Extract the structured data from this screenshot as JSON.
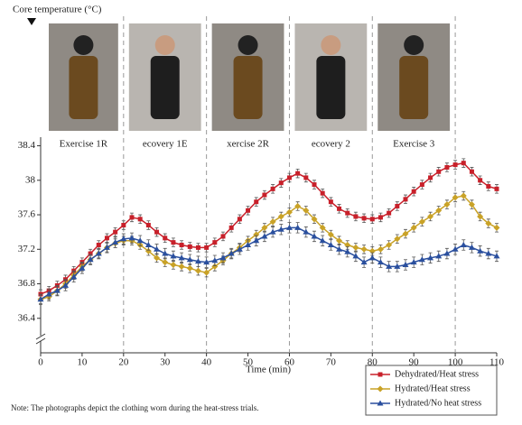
{
  "chart_data": {
    "type": "line",
    "y_label": "Core temperature (°C)",
    "x_label": "Time (min)",
    "note": "Note: The photographs depict the clothing worn during the heat-stress trials.",
    "phases": [
      "Exercise 1R",
      "ecovery 1E",
      "xercise 2R",
      "ecovery 2",
      "Exercise 3"
    ],
    "phase_bounds": [
      20,
      40,
      60,
      80,
      100
    ],
    "xlim": [
      0,
      110
    ],
    "xticks": [
      0,
      10,
      20,
      30,
      40,
      50,
      60,
      70,
      80,
      90,
      100,
      110
    ],
    "ylim": [
      36.0,
      38.5
    ],
    "yticks": [
      36.4,
      36.8,
      37.2,
      37.6,
      38.0,
      38.4
    ],
    "x": [
      0,
      2,
      4,
      6,
      8,
      10,
      12,
      14,
      16,
      18,
      20,
      22,
      24,
      26,
      28,
      30,
      32,
      34,
      36,
      38,
      40,
      42,
      44,
      46,
      48,
      50,
      52,
      54,
      56,
      58,
      60,
      62,
      64,
      66,
      68,
      70,
      72,
      74,
      76,
      78,
      80,
      82,
      84,
      86,
      88,
      90,
      92,
      94,
      96,
      98,
      100,
      102,
      104,
      106,
      108,
      110
    ],
    "series": [
      {
        "name": "Dehydrated/Heat stress",
        "color": "#c8202a",
        "marker": "square",
        "error": 0.05,
        "values": [
          36.68,
          36.72,
          36.78,
          36.85,
          36.95,
          37.05,
          37.15,
          37.25,
          37.33,
          37.4,
          37.48,
          37.57,
          37.55,
          37.48,
          37.4,
          37.33,
          37.28,
          37.25,
          37.23,
          37.22,
          37.22,
          37.28,
          37.35,
          37.45,
          37.55,
          37.65,
          37.75,
          37.83,
          37.9,
          37.97,
          38.03,
          38.08,
          38.03,
          37.95,
          37.85,
          37.75,
          37.67,
          37.62,
          37.58,
          37.56,
          37.55,
          37.57,
          37.62,
          37.7,
          37.78,
          37.87,
          37.95,
          38.03,
          38.1,
          38.15,
          38.18,
          38.2,
          38.1,
          38.0,
          37.93,
          37.9
        ]
      },
      {
        "name": "Hydrated/Heat stress",
        "color": "#c9a227",
        "marker": "diamond",
        "error": 0.05,
        "values": [
          36.62,
          36.65,
          36.72,
          36.8,
          36.9,
          37.0,
          37.08,
          37.15,
          37.22,
          37.27,
          37.3,
          37.3,
          37.25,
          37.18,
          37.1,
          37.05,
          37.02,
          37.0,
          36.98,
          36.95,
          36.93,
          37.0,
          37.07,
          37.15,
          37.22,
          37.3,
          37.37,
          37.45,
          37.52,
          37.58,
          37.63,
          37.7,
          37.65,
          37.55,
          37.45,
          37.37,
          37.3,
          37.25,
          37.22,
          37.2,
          37.18,
          37.2,
          37.25,
          37.32,
          37.38,
          37.45,
          37.52,
          37.58,
          37.65,
          37.72,
          37.8,
          37.82,
          37.72,
          37.58,
          37.5,
          37.45
        ]
      },
      {
        "name": "Hydrated/No heat stress",
        "color": "#2a4f9e",
        "marker": "triangle",
        "error": 0.06,
        "values": [
          36.62,
          36.68,
          36.72,
          36.78,
          36.88,
          36.98,
          37.08,
          37.15,
          37.22,
          37.28,
          37.32,
          37.33,
          37.3,
          37.25,
          37.2,
          37.15,
          37.12,
          37.1,
          37.08,
          37.06,
          37.05,
          37.07,
          37.1,
          37.15,
          37.2,
          37.25,
          37.3,
          37.35,
          37.4,
          37.43,
          37.45,
          37.45,
          37.4,
          37.35,
          37.3,
          37.25,
          37.2,
          37.17,
          37.12,
          37.05,
          37.1,
          37.05,
          37.0,
          37.0,
          37.02,
          37.05,
          37.08,
          37.1,
          37.12,
          37.15,
          37.2,
          37.25,
          37.22,
          37.18,
          37.15,
          37.12
        ]
      }
    ]
  }
}
